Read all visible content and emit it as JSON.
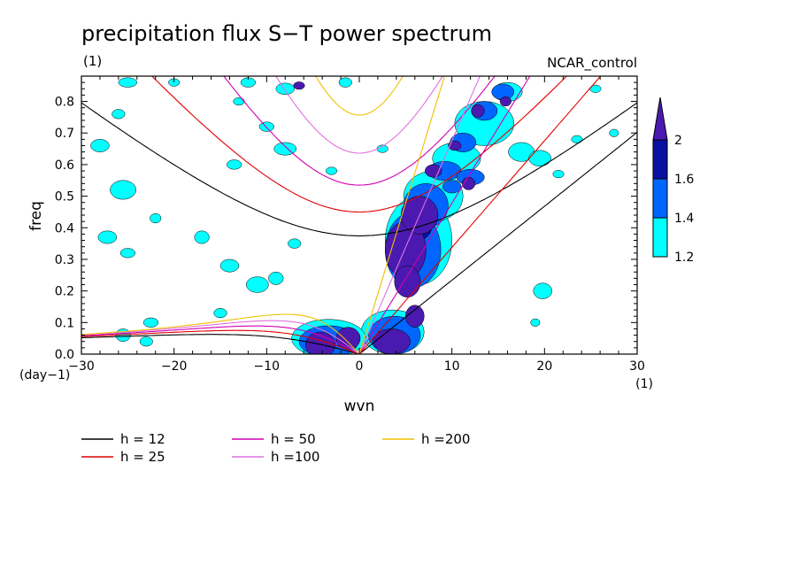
{
  "chart_data": {
    "type": "contour",
    "title": "precipitation flux S−T power spectrum",
    "units_label": "(1)",
    "dataset_label": "NCAR_control",
    "xlabel": "wvn",
    "ylabel": "freq",
    "x_units": "(1)",
    "y_units": "(day−1)",
    "xlim": [
      -30,
      30
    ],
    "ylim": [
      0.0,
      0.88
    ],
    "x_ticks": [
      -30,
      -20,
      -10,
      0,
      10,
      20,
      30
    ],
    "x_tick_labels": [
      "−30",
      "−20",
      "−10",
      "0",
      "10",
      "20",
      "30"
    ],
    "y_ticks": [
      0.0,
      0.1,
      0.2,
      0.3,
      0.4,
      0.5,
      0.6,
      0.7,
      0.8
    ],
    "y_tick_labels": [
      "0.0",
      "0.1",
      "0.2",
      "0.3",
      "0.4",
      "0.5",
      "0.6",
      "0.7",
      "0.8"
    ],
    "contour_levels": [
      1.2,
      1.4,
      1.6,
      2
    ],
    "colorbar_labels": [
      "1.2",
      "1.4",
      "1.6",
      "2"
    ],
    "colors": [
      "#00ffff",
      "#0066ff",
      "#0a10a0",
      "#4a1ab0"
    ],
    "dispersion_curves": [
      {
        "label": "h = 12",
        "h": 12,
        "color": "#000000"
      },
      {
        "label": "h = 25",
        "h": 25,
        "color": "#e00000"
      },
      {
        "label": "h = 50",
        "h": 50,
        "color": "#d000b0"
      },
      {
        "label": "h =100",
        "h": 100,
        "color": "#e070e0"
      },
      {
        "label": "h =200",
        "h": 200,
        "color": "#f0c000"
      }
    ],
    "regions": [
      {
        "level": 3,
        "x": 5.0,
        "y": 0.33,
        "rx": 2.2,
        "ry": 0.09
      },
      {
        "level": 3,
        "x": 6.5,
        "y": 0.44,
        "rx": 2.0,
        "ry": 0.06
      },
      {
        "level": 3,
        "x": 5.2,
        "y": 0.23,
        "rx": 1.4,
        "ry": 0.05
      },
      {
        "level": 3,
        "x": 3.5,
        "y": 0.04,
        "rx": 2.0,
        "ry": 0.04
      },
      {
        "level": 3,
        "x": 6.0,
        "y": 0.12,
        "rx": 1.0,
        "ry": 0.035
      },
      {
        "level": 3,
        "x": -4.2,
        "y": 0.03,
        "rx": 1.6,
        "ry": 0.04
      },
      {
        "level": 3,
        "x": -1.2,
        "y": 0.05,
        "rx": 1.3,
        "ry": 0.035
      },
      {
        "level": 3,
        "x": 8.0,
        "y": 0.58,
        "rx": 0.9,
        "ry": 0.02
      },
      {
        "level": 3,
        "x": 10.3,
        "y": 0.66,
        "rx": 0.7,
        "ry": 0.015
      },
      {
        "level": 3,
        "x": 11.8,
        "y": 0.54,
        "rx": 0.7,
        "ry": 0.02
      },
      {
        "level": 3,
        "x": 12.8,
        "y": 0.77,
        "rx": 0.7,
        "ry": 0.02
      },
      {
        "level": 3,
        "x": 15.8,
        "y": 0.8,
        "rx": 0.6,
        "ry": 0.015
      },
      {
        "level": 3,
        "x": -6.5,
        "y": 0.85,
        "rx": 0.6,
        "ry": 0.012
      },
      {
        "level": 2,
        "x": 6.2,
        "y": 0.4,
        "rx": 1.6,
        "ry": 0.04
      },
      {
        "level": 1,
        "x": 5.8,
        "y": 0.33,
        "rx": 3.0,
        "ry": 0.12
      },
      {
        "level": 1,
        "x": 7.2,
        "y": 0.47,
        "rx": 2.4,
        "ry": 0.07
      },
      {
        "level": 1,
        "x": 3.8,
        "y": 0.06,
        "rx": 2.8,
        "ry": 0.06
      },
      {
        "level": 1,
        "x": -3.3,
        "y": 0.04,
        "rx": 3.2,
        "ry": 0.05
      },
      {
        "level": 1,
        "x": 9.2,
        "y": 0.58,
        "rx": 1.8,
        "ry": 0.03
      },
      {
        "level": 1,
        "x": 11.2,
        "y": 0.67,
        "rx": 1.4,
        "ry": 0.03
      },
      {
        "level": 1,
        "x": 13.5,
        "y": 0.77,
        "rx": 1.4,
        "ry": 0.03
      },
      {
        "level": 1,
        "x": 15.5,
        "y": 0.83,
        "rx": 1.2,
        "ry": 0.025
      },
      {
        "level": 1,
        "x": 12.0,
        "y": 0.56,
        "rx": 1.5,
        "ry": 0.025
      },
      {
        "level": 1,
        "x": 10.0,
        "y": 0.53,
        "rx": 1.0,
        "ry": 0.02
      },
      {
        "level": 0,
        "x": 6.4,
        "y": 0.36,
        "rx": 3.6,
        "ry": 0.14
      },
      {
        "level": 0,
        "x": 8.0,
        "y": 0.5,
        "rx": 3.2,
        "ry": 0.08
      },
      {
        "level": 0,
        "x": 3.6,
        "y": 0.07,
        "rx": 3.4,
        "ry": 0.07
      },
      {
        "level": 0,
        "x": -3.3,
        "y": 0.05,
        "rx": 4.0,
        "ry": 0.06
      },
      {
        "level": 0,
        "x": 10.5,
        "y": 0.62,
        "rx": 2.6,
        "ry": 0.05
      },
      {
        "level": 0,
        "x": 13.5,
        "y": 0.73,
        "rx": 3.2,
        "ry": 0.07
      },
      {
        "level": 0,
        "x": 17.5,
        "y": 0.64,
        "rx": 1.4,
        "ry": 0.03
      },
      {
        "level": 0,
        "x": 19.5,
        "y": 0.62,
        "rx": 1.2,
        "ry": 0.025
      },
      {
        "level": 0,
        "x": 19.8,
        "y": 0.2,
        "rx": 1.0,
        "ry": 0.025
      },
      {
        "level": 0,
        "x": 16.0,
        "y": 0.83,
        "rx": 1.6,
        "ry": 0.03
      },
      {
        "level": 0,
        "x": -25.5,
        "y": 0.06,
        "rx": 0.8,
        "ry": 0.02
      },
      {
        "level": 0,
        "x": -23.0,
        "y": 0.04,
        "rx": 0.7,
        "ry": 0.015
      },
      {
        "level": 0,
        "x": -11.0,
        "y": 0.22,
        "rx": 1.2,
        "ry": 0.025
      },
      {
        "level": 0,
        "x": -9.0,
        "y": 0.24,
        "rx": 0.8,
        "ry": 0.02
      },
      {
        "level": 0,
        "x": -25.5,
        "y": 0.52,
        "rx": 1.4,
        "ry": 0.03
      },
      {
        "level": 0,
        "x": -28.0,
        "y": 0.66,
        "rx": 1.0,
        "ry": 0.02
      },
      {
        "level": 0,
        "x": -27.2,
        "y": 0.37,
        "rx": 1.0,
        "ry": 0.02
      },
      {
        "level": 0,
        "x": -22.0,
        "y": 0.43,
        "rx": 0.6,
        "ry": 0.015
      },
      {
        "level": 0,
        "x": -17.0,
        "y": 0.37,
        "rx": 0.8,
        "ry": 0.02
      },
      {
        "level": 0,
        "x": -14.0,
        "y": 0.28,
        "rx": 1.0,
        "ry": 0.02
      },
      {
        "level": 0,
        "x": -25.0,
        "y": 0.32,
        "rx": 0.8,
        "ry": 0.015
      },
      {
        "level": 0,
        "x": -26.0,
        "y": 0.76,
        "rx": 0.7,
        "ry": 0.015
      },
      {
        "level": 0,
        "x": -25.0,
        "y": 0.86,
        "rx": 1.0,
        "ry": 0.015
      },
      {
        "level": 0,
        "x": -20.0,
        "y": 0.86,
        "rx": 0.6,
        "ry": 0.012
      },
      {
        "level": 0,
        "x": -12.0,
        "y": 0.86,
        "rx": 0.8,
        "ry": 0.015
      },
      {
        "level": 0,
        "x": -8.0,
        "y": 0.84,
        "rx": 1.0,
        "ry": 0.018
      },
      {
        "level": 0,
        "x": -1.5,
        "y": 0.86,
        "rx": 0.7,
        "ry": 0.015
      },
      {
        "level": 0,
        "x": -10.0,
        "y": 0.72,
        "rx": 0.8,
        "ry": 0.015
      },
      {
        "level": 0,
        "x": -8.0,
        "y": 0.65,
        "rx": 1.2,
        "ry": 0.02
      },
      {
        "level": 0,
        "x": -13.5,
        "y": 0.6,
        "rx": 0.8,
        "ry": 0.015
      },
      {
        "level": 0,
        "x": -13.0,
        "y": 0.8,
        "rx": 0.6,
        "ry": 0.012
      },
      {
        "level": 0,
        "x": -15.0,
        "y": 0.13,
        "rx": 0.7,
        "ry": 0.015
      },
      {
        "level": 0,
        "x": -22.5,
        "y": 0.1,
        "rx": 0.8,
        "ry": 0.015
      },
      {
        "level": 0,
        "x": -7.0,
        "y": 0.35,
        "rx": 0.7,
        "ry": 0.015
      },
      {
        "level": 0,
        "x": -3.0,
        "y": 0.58,
        "rx": 0.6,
        "ry": 0.012
      },
      {
        "level": 0,
        "x": 2.5,
        "y": 0.65,
        "rx": 0.6,
        "ry": 0.012
      },
      {
        "level": 0,
        "x": 25.5,
        "y": 0.84,
        "rx": 0.6,
        "ry": 0.012
      },
      {
        "level": 0,
        "x": 27.5,
        "y": 0.7,
        "rx": 0.5,
        "ry": 0.012
      },
      {
        "level": 0,
        "x": 23.5,
        "y": 0.68,
        "rx": 0.6,
        "ry": 0.012
      },
      {
        "level": 0,
        "x": 21.5,
        "y": 0.57,
        "rx": 0.6,
        "ry": 0.012
      },
      {
        "level": 0,
        "x": 19.0,
        "y": 0.1,
        "rx": 0.5,
        "ry": 0.012
      }
    ]
  }
}
